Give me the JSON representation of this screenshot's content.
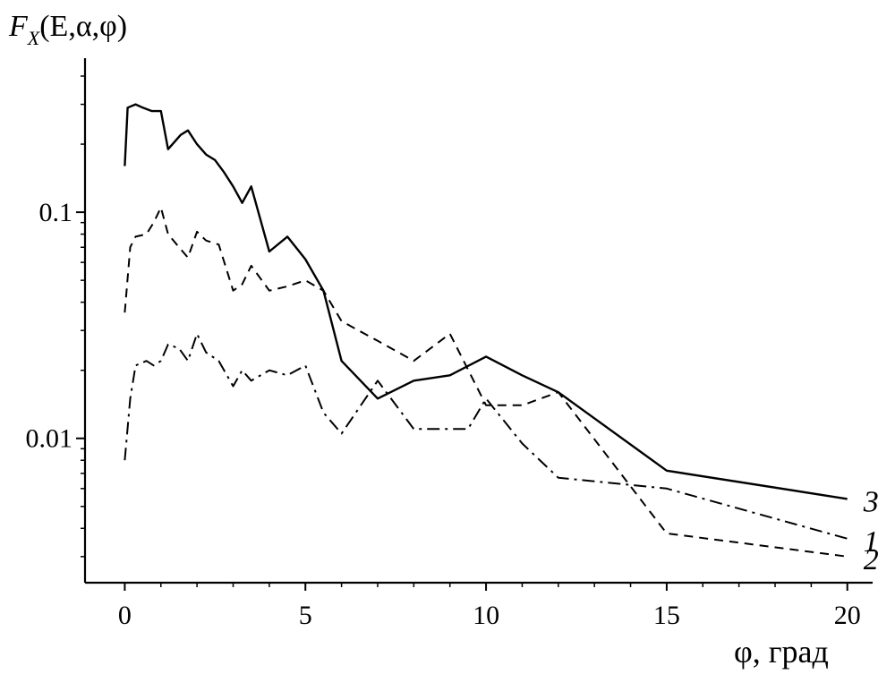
{
  "chart_data": {
    "type": "line",
    "ylabel": {
      "letter": "F",
      "sub": "X",
      "rest": "(E,α,φ)"
    },
    "xlabel": "φ, град",
    "xlim": [
      -1.1,
      20.7
    ],
    "ylim": [
      0.0023,
      0.48
    ],
    "yscale": "log",
    "grid": false,
    "xticks": [
      0,
      5,
      10,
      15,
      20
    ],
    "xtick_labels": [
      "0",
      "5",
      "10",
      "15",
      "20"
    ],
    "yticks": [
      0.1,
      0.01
    ],
    "ytick_labels": [
      "0.1",
      "0.01"
    ],
    "series": [
      {
        "name": "3",
        "style": "solid",
        "x": [
          0,
          0.08,
          0.3,
          0.5,
          0.75,
          1.0,
          1.2,
          1.55,
          1.75,
          2.0,
          2.25,
          2.5,
          2.75,
          3.0,
          3.25,
          3.5,
          4.0,
          4.5,
          5.0,
          5.5,
          6.0,
          7.0,
          8.0,
          9.0,
          10.0,
          11.0,
          12.0,
          15.0,
          20.0
        ],
        "y": [
          0.16,
          0.29,
          0.3,
          0.29,
          0.28,
          0.28,
          0.19,
          0.22,
          0.23,
          0.2,
          0.18,
          0.17,
          0.15,
          0.13,
          0.11,
          0.13,
          0.067,
          0.078,
          0.062,
          0.045,
          0.022,
          0.015,
          0.018,
          0.019,
          0.023,
          0.019,
          0.016,
          0.0072,
          0.0054
        ]
      },
      {
        "name": "1",
        "style": "dashdot",
        "x": [
          0,
          0.15,
          0.3,
          0.6,
          0.8,
          1.0,
          1.2,
          1.5,
          1.75,
          2.0,
          2.25,
          2.6,
          3.0,
          3.25,
          3.5,
          4.0,
          4.5,
          5.0,
          5.5,
          6.0,
          7.0,
          8.0,
          9.0,
          9.5,
          10.0,
          11.0,
          12.0,
          15.0,
          20.0
        ],
        "y": [
          0.008,
          0.015,
          0.021,
          0.022,
          0.021,
          0.022,
          0.026,
          0.025,
          0.022,
          0.029,
          0.024,
          0.022,
          0.017,
          0.02,
          0.018,
          0.02,
          0.019,
          0.021,
          0.013,
          0.0105,
          0.018,
          0.011,
          0.011,
          0.011,
          0.015,
          0.0095,
          0.0067,
          0.006,
          0.0036
        ]
      },
      {
        "name": "2",
        "style": "dashed",
        "x": [
          0,
          0.15,
          0.3,
          0.6,
          0.8,
          1.0,
          1.2,
          1.5,
          1.75,
          2.0,
          2.25,
          2.6,
          3.0,
          3.25,
          3.5,
          4.0,
          4.5,
          5.0,
          5.5,
          6.0,
          7.0,
          8.0,
          9.0,
          10.0,
          11.0,
          12.0,
          15.0,
          20.0
        ],
        "y": [
          0.036,
          0.07,
          0.078,
          0.08,
          0.09,
          0.105,
          0.08,
          0.07,
          0.063,
          0.082,
          0.075,
          0.072,
          0.045,
          0.048,
          0.058,
          0.045,
          0.047,
          0.05,
          0.045,
          0.033,
          0.027,
          0.022,
          0.029,
          0.014,
          0.014,
          0.016,
          0.0038,
          0.003
        ]
      }
    ],
    "series_label_positions": [
      "end",
      "end",
      "end"
    ]
  }
}
